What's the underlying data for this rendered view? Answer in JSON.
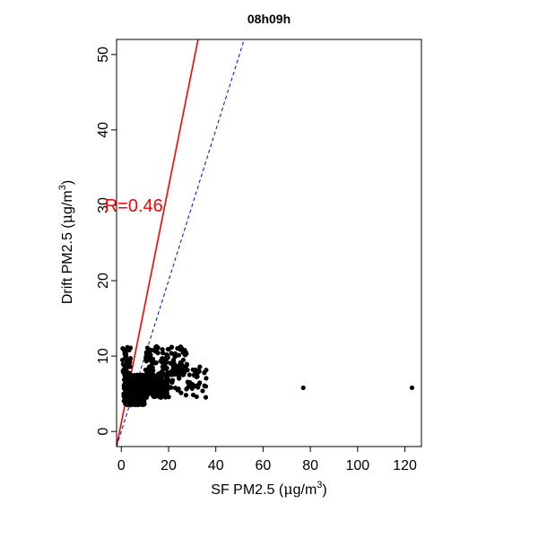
{
  "chart_data": {
    "type": "scatter",
    "title": "08h09h",
    "xlabel": "SF PM2.5 (μg/m³)",
    "ylabel": "Drift PM2.5 (μg/m³)",
    "xlabel_parts": {
      "prefix": "SF PM2.5 (",
      "mu": "μ",
      "unit": "g/m",
      "sup": "3",
      "suffix": ")"
    },
    "ylabel_parts": {
      "prefix": "Drift PM2.5 (",
      "mu": "μ",
      "unit": "g/m",
      "sup": "3",
      "suffix": ")"
    },
    "xlim": [
      -2,
      127
    ],
    "ylim": [
      -2,
      52
    ],
    "xticks": [
      0,
      20,
      40,
      60,
      80,
      100,
      120
    ],
    "yticks": [
      0,
      10,
      20,
      30,
      40,
      50
    ],
    "grid": false,
    "legend": "none",
    "annotation": {
      "text": "R=0.46",
      "x": -4,
      "y": 30,
      "color": "#ff0000"
    },
    "lines": [
      {
        "kind": "fit",
        "color": "#ff0000",
        "style": "solid",
        "x": [
          -2,
          32.5
        ],
        "y": [
          -2,
          52
        ]
      },
      {
        "kind": "identity",
        "color": "#0000ff",
        "style": "dashed",
        "x": [
          -2,
          52
        ],
        "y": [
          -2,
          52
        ]
      }
    ],
    "points": {
      "color": "#000000",
      "outliers": [
        [
          77,
          5.8
        ],
        [
          123,
          5.8
        ]
      ],
      "clusters": [
        {
          "x_range": [
            1,
            10
          ],
          "y_range": [
            3.5,
            7.5
          ],
          "count": 320
        },
        {
          "x_range": [
            8,
            20
          ],
          "y_range": [
            4.5,
            7.5
          ],
          "count": 200
        },
        {
          "x_range": [
            0.5,
            4
          ],
          "y_range": [
            7.5,
            11.3
          ],
          "count": 35
        },
        {
          "x_range": [
            10,
            28
          ],
          "y_range": [
            7.5,
            11.3
          ],
          "count": 140
        },
        {
          "x_range": [
            20,
            36
          ],
          "y_range": [
            4.5,
            9
          ],
          "count": 60
        }
      ]
    }
  }
}
